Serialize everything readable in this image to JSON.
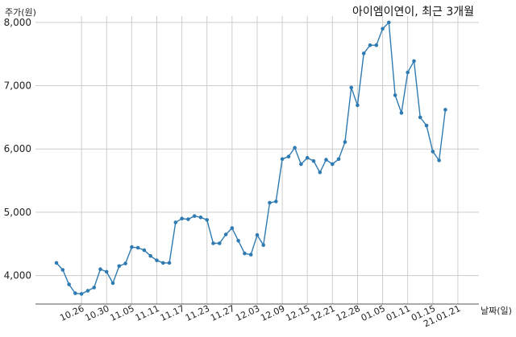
{
  "chart_data": {
    "type": "line",
    "title": "아이엠이연이, 최근 3개월",
    "ylabel": "주가(원)",
    "xlabel": "날짜(일)",
    "ylim": [
      3550,
      8100
    ],
    "yticks": [
      4000,
      5000,
      6000,
      7000,
      8000
    ],
    "ytick_labels": [
      "4,000",
      "5,000",
      "6,000",
      "7,000",
      "8,000"
    ],
    "xtick_labels": [
      "10.26",
      "10.30",
      "11.05",
      "11.11",
      "11.17",
      "11.23",
      "11.27",
      "12.03",
      "12.09",
      "12.15",
      "12.21",
      "12.28",
      "01.05",
      "01.11",
      "01.15",
      "21.01.21"
    ],
    "xtick_index": [
      4,
      8,
      12,
      16,
      20,
      24,
      28,
      32,
      36,
      40,
      44,
      48,
      52,
      56,
      60,
      64
    ],
    "grid": true,
    "values": [
      4200,
      4090,
      3860,
      3720,
      3710,
      3760,
      3810,
      4100,
      4060,
      3880,
      4150,
      4190,
      4450,
      4440,
      4400,
      4310,
      4240,
      4200,
      4200,
      4840,
      4900,
      4890,
      4940,
      4920,
      4880,
      4510,
      4510,
      4650,
      4750,
      4550,
      4350,
      4330,
      4640,
      4480,
      5150,
      5170,
      5840,
      5880,
      6020,
      5760,
      5860,
      5810,
      5630,
      5830,
      5760,
      5840,
      6110,
      6970,
      6690,
      7510,
      7640,
      7640,
      7900,
      8000,
      6850,
      6570,
      7210,
      7390,
      6500,
      6370,
      5960,
      5820,
      6620
    ]
  }
}
